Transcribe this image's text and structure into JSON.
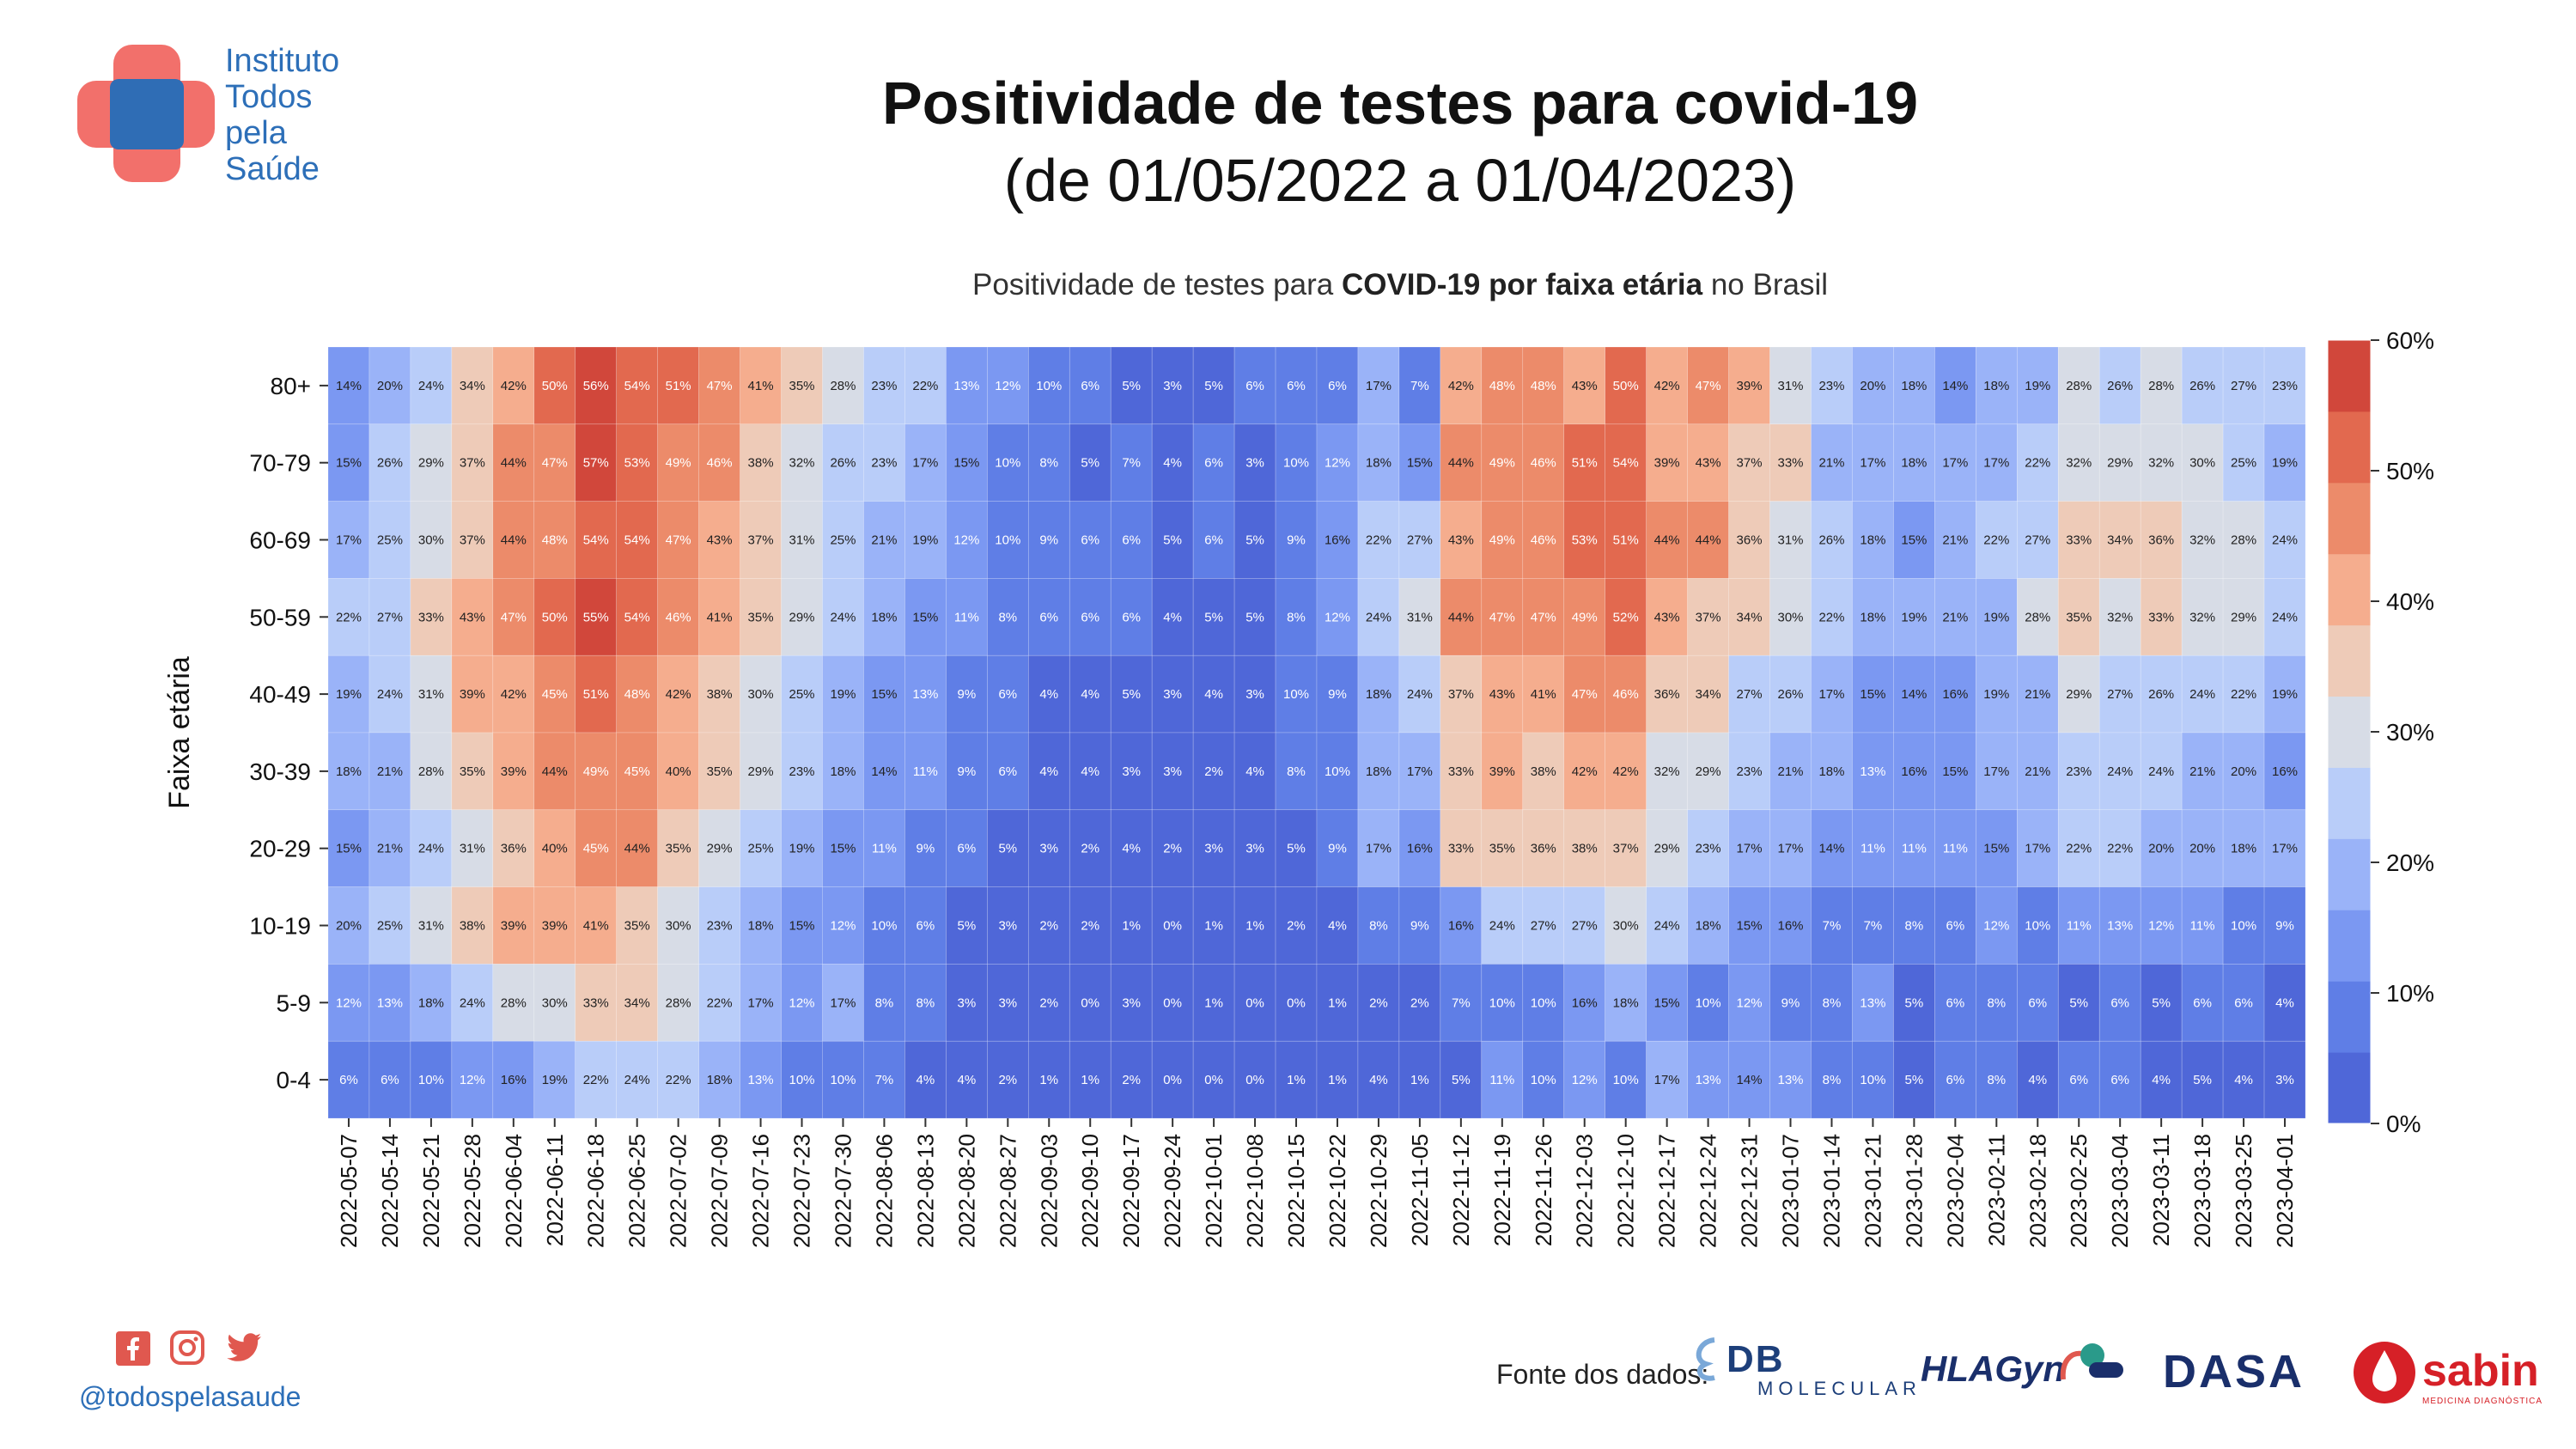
{
  "logo": {
    "lines": [
      "Instituto",
      "Todos",
      "pela",
      "Saúde"
    ]
  },
  "header": {
    "title": "Positividade de testes para covid-19",
    "subtitle": "(de 01/05/2022 a 01/04/2023)"
  },
  "chart_subtitle": {
    "pre": "Positividade de testes para ",
    "bold": "COVID-19 por faixa etária",
    "post": " no Brasil"
  },
  "footer": {
    "handle": "@todospelasaude",
    "fonte_label": "Fonte dos dados:",
    "partners": {
      "db": "DB",
      "db_sub": "MOLECULAR",
      "hla": "HLAGyn",
      "dasa": "DASA",
      "sabin": "sabin",
      "sabin_sub": "MEDICINA DIAGNÓSTICA"
    },
    "social_icons": [
      "facebook-icon",
      "instagram-icon",
      "twitter-icon"
    ]
  },
  "colors": {
    "accent_blue": "#2d6fb8",
    "logo_red": "#f2706b",
    "logo_blue": "#2f6db5",
    "scale": [
      "#4f67d8",
      "#5f7ee6",
      "#7b98f2",
      "#9ab3f8",
      "#b9cdf9",
      "#d7dce6",
      "#eecbb8",
      "#f5ad8e",
      "#ec8b6a",
      "#e2694f",
      "#d1473b"
    ]
  },
  "chart_data": {
    "type": "heatmap",
    "title": "Positividade de testes para COVID-19 por faixa etária no Brasil",
    "ylabel": "Faixa etária",
    "xlabel": "",
    "colorbar": {
      "min": 0,
      "max": 60,
      "ticks": [
        "0%",
        "10%",
        "20%",
        "30%",
        "40%",
        "50%",
        "60%"
      ],
      "tick_values": [
        0,
        10,
        20,
        30,
        40,
        50,
        60
      ]
    },
    "x": [
      "2022-05-07",
      "2022-05-14",
      "2022-05-21",
      "2022-05-28",
      "2022-06-04",
      "2022-06-11",
      "2022-06-18",
      "2022-06-25",
      "2022-07-02",
      "2022-07-09",
      "2022-07-16",
      "2022-07-23",
      "2022-07-30",
      "2022-08-06",
      "2022-08-13",
      "2022-08-20",
      "2022-08-27",
      "2022-09-03",
      "2022-09-10",
      "2022-09-17",
      "2022-09-24",
      "2022-10-01",
      "2022-10-08",
      "2022-10-15",
      "2022-10-22",
      "2022-10-29",
      "2022-11-05",
      "2022-11-12",
      "2022-11-19",
      "2022-11-26",
      "2022-12-03",
      "2022-12-10",
      "2022-12-17",
      "2022-12-24",
      "2022-12-31",
      "2023-01-07",
      "2023-01-14",
      "2023-01-21",
      "2023-01-28",
      "2023-02-04",
      "2023-02-11",
      "2023-02-18",
      "2023-02-25",
      "2023-03-04",
      "2023-03-11",
      "2023-03-18",
      "2023-03-25",
      "2023-04-01"
    ],
    "y": [
      "80+",
      "70-79",
      "60-69",
      "50-59",
      "40-49",
      "30-39",
      "20-29",
      "10-19",
      "5-9",
      "0-4"
    ],
    "values": [
      [
        14,
        20,
        24,
        34,
        42,
        50,
        56,
        54,
        51,
        47,
        41,
        35,
        28,
        23,
        22,
        13,
        12,
        10,
        6,
        5,
        3,
        5,
        6,
        6,
        6,
        17,
        7,
        42,
        48,
        48,
        43,
        50,
        42,
        47,
        39,
        31,
        23,
        20,
        18,
        14,
        18,
        19,
        28,
        26,
        28,
        26,
        27,
        23
      ],
      [
        15,
        26,
        29,
        37,
        44,
        47,
        57,
        53,
        49,
        46,
        38,
        32,
        26,
        23,
        17,
        15,
        10,
        8,
        5,
        7,
        4,
        6,
        3,
        10,
        12,
        18,
        15,
        44,
        49,
        46,
        51,
        54,
        39,
        43,
        37,
        33,
        21,
        17,
        18,
        17,
        17,
        22,
        32,
        29,
        32,
        30,
        25,
        19
      ],
      [
        17,
        25,
        30,
        37,
        44,
        48,
        54,
        54,
        47,
        43,
        37,
        31,
        25,
        21,
        19,
        12,
        10,
        9,
        6,
        6,
        5,
        6,
        5,
        9,
        16,
        22,
        27,
        43,
        49,
        46,
        53,
        51,
        44,
        44,
        36,
        31,
        26,
        18,
        15,
        21,
        22,
        27,
        33,
        34,
        36,
        32,
        28,
        24
      ],
      [
        22,
        27,
        33,
        43,
        47,
        50,
        55,
        54,
        46,
        41,
        35,
        29,
        24,
        18,
        15,
        11,
        8,
        6,
        6,
        6,
        4,
        5,
        5,
        8,
        12,
        24,
        31,
        44,
        47,
        47,
        49,
        52,
        43,
        37,
        34,
        30,
        22,
        18,
        19,
        21,
        19,
        28,
        35,
        32,
        33,
        32,
        29,
        24
      ],
      [
        19,
        24,
        31,
        39,
        42,
        45,
        51,
        48,
        42,
        38,
        30,
        25,
        19,
        15,
        13,
        9,
        6,
        4,
        4,
        5,
        3,
        4,
        3,
        10,
        9,
        18,
        24,
        37,
        43,
        41,
        47,
        46,
        36,
        34,
        27,
        26,
        17,
        15,
        14,
        16,
        19,
        21,
        29,
        27,
        26,
        24,
        22,
        19
      ],
      [
        18,
        21,
        28,
        35,
        39,
        44,
        49,
        45,
        40,
        35,
        29,
        23,
        18,
        14,
        11,
        9,
        6,
        4,
        4,
        3,
        3,
        2,
        4,
        8,
        10,
        18,
        17,
        33,
        39,
        38,
        42,
        42,
        32,
        29,
        23,
        21,
        18,
        13,
        16,
        15,
        17,
        21,
        23,
        24,
        24,
        21,
        20,
        16
      ],
      [
        15,
        21,
        24,
        31,
        36,
        40,
        45,
        44,
        35,
        29,
        25,
        19,
        15,
        11,
        9,
        6,
        5,
        3,
        2,
        4,
        2,
        3,
        3,
        5,
        9,
        17,
        16,
        33,
        35,
        36,
        38,
        37,
        29,
        23,
        17,
        17,
        14,
        11,
        11,
        11,
        15,
        17,
        22,
        22,
        20,
        20,
        18,
        17
      ],
      [
        20,
        25,
        31,
        38,
        39,
        39,
        41,
        35,
        30,
        23,
        18,
        15,
        12,
        10,
        6,
        5,
        3,
        2,
        2,
        1,
        0,
        1,
        1,
        2,
        4,
        8,
        9,
        16,
        24,
        27,
        27,
        30,
        24,
        18,
        15,
        16,
        7,
        7,
        8,
        6,
        12,
        10,
        11,
        13,
        12,
        11,
        10,
        9
      ],
      [
        12,
        13,
        18,
        24,
        28,
        30,
        33,
        34,
        28,
        22,
        17,
        12,
        17,
        8,
        8,
        3,
        3,
        2,
        0,
        3,
        0,
        1,
        0,
        0,
        1,
        2,
        2,
        7,
        10,
        10,
        16,
        18,
        15,
        10,
        12,
        9,
        8,
        13,
        5,
        6,
        8,
        6,
        5,
        6,
        5,
        6,
        6,
        4
      ],
      [
        6,
        6,
        10,
        12,
        16,
        19,
        22,
        24,
        22,
        18,
        13,
        10,
        10,
        7,
        4,
        4,
        2,
        1,
        1,
        2,
        0,
        0,
        0,
        1,
        1,
        4,
        1,
        5,
        11,
        10,
        12,
        10,
        17,
        13,
        14,
        13,
        8,
        10,
        5,
        6,
        8,
        4,
        6,
        6,
        4,
        5,
        4,
        3
      ]
    ]
  }
}
